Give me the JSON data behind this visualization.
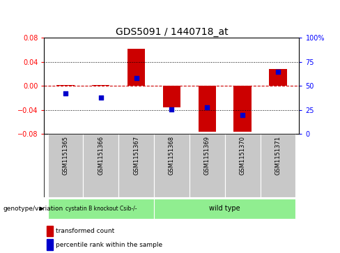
{
  "title": "GDS5091 / 1440718_at",
  "samples": [
    "GSM1151365",
    "GSM1151366",
    "GSM1151367",
    "GSM1151368",
    "GSM1151369",
    "GSM1151370",
    "GSM1151371"
  ],
  "transformed_count": [
    0.002,
    0.002,
    0.062,
    -0.036,
    -0.076,
    -0.076,
    0.028
  ],
  "percentile_rank": [
    42,
    38,
    58,
    26,
    28,
    20,
    65
  ],
  "ylim": [
    -0.08,
    0.08
  ],
  "yticks_left": [
    -0.08,
    -0.04,
    0,
    0.04,
    0.08
  ],
  "yticks_right": [
    0,
    25,
    50,
    75,
    100
  ],
  "bar_color": "#cc0000",
  "dot_color": "#0000cc",
  "zero_line_color": "#cc0000",
  "group_bg_color": "#c8c8c8",
  "green_color": "#90ee90",
  "legend_transformed": "transformed count",
  "legend_percentile": "percentile rank within the sample",
  "genotype_label": "genotype/variation",
  "group1_label": "cystatin B knockout Csib-/-",
  "group1_samples": 3,
  "group2_label": "wild type",
  "group2_samples": 4
}
